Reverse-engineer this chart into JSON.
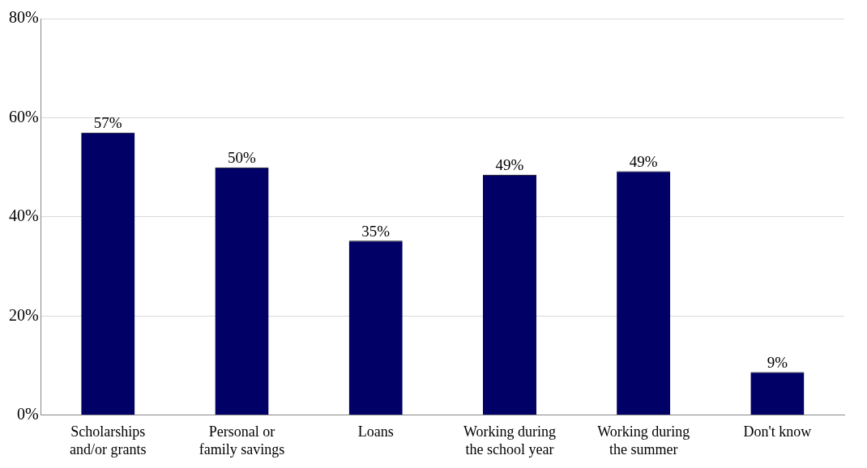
{
  "chart_data": {
    "type": "bar",
    "categories": [
      "Scholarships and/or grants",
      "Personal or family savings",
      "Loans",
      "Working during the school year",
      "Working during the summer",
      "Don't know"
    ],
    "values": [
      57,
      50,
      35.2,
      48.5,
      49.2,
      8.7
    ],
    "value_labels": [
      "57%",
      "50%",
      "35%",
      "49%",
      "49%",
      "9%"
    ],
    "color": "#000066",
    "ylim": [
      0,
      80
    ],
    "yticks": [
      {
        "value": 0,
        "label": "0%"
      },
      {
        "value": 20,
        "label": "20%"
      },
      {
        "value": 40,
        "label": "40%"
      },
      {
        "value": 60,
        "label": "60%"
      },
      {
        "value": 80,
        "label": "80%"
      }
    ],
    "grid": "y",
    "legend": false
  }
}
